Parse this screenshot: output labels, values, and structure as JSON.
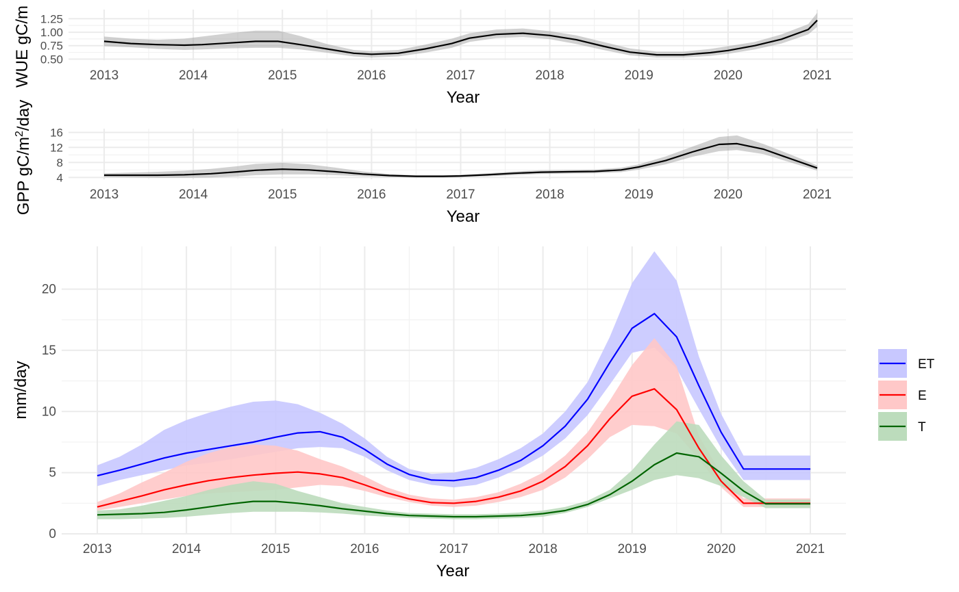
{
  "chart_data": [
    {
      "type": "line",
      "panel": "wue",
      "xlabel": "Year",
      "ylabel": "WUE gC/m",
      "xlim": [
        2012.6,
        2021.4
      ],
      "ylim": [
        0.48,
        1.42
      ],
      "xticks": [
        2013,
        2014,
        2015,
        2016,
        2017,
        2018,
        2019,
        2020,
        2021
      ],
      "xtick_labels": [
        "2013",
        "2014",
        "2015",
        "2016",
        "2017",
        "2018",
        "2019",
        "2020",
        "2021"
      ],
      "yticks": [
        0.5,
        0.75,
        1.0,
        1.25
      ],
      "ytick_labels": [
        "0.50",
        "0.75",
        "1.00",
        "1.25"
      ],
      "grid": true,
      "colors": {
        "line": "#000000",
        "band": "#999999"
      },
      "series": [
        {
          "x": [
            2013,
            2013.3,
            2013.6,
            2013.9,
            2014.1,
            2014.4,
            2014.7,
            2014.95,
            2015.2,
            2015.5,
            2015.8,
            2016.0,
            2016.3,
            2016.6,
            2016.9,
            2017.1,
            2017.4,
            2017.7,
            2018.0,
            2018.3,
            2018.6,
            2018.9,
            2019.2,
            2019.5,
            2019.8,
            2020.0,
            2020.3,
            2020.6,
            2020.9,
            2021.0
          ],
          "y": [
            0.83,
            0.79,
            0.77,
            0.76,
            0.77,
            0.8,
            0.83,
            0.83,
            0.77,
            0.69,
            0.61,
            0.59,
            0.61,
            0.69,
            0.79,
            0.89,
            0.96,
            0.98,
            0.94,
            0.86,
            0.74,
            0.63,
            0.58,
            0.58,
            0.62,
            0.66,
            0.75,
            0.87,
            1.05,
            1.22
          ],
          "lower": [
            0.74,
            0.72,
            0.69,
            0.67,
            0.68,
            0.7,
            0.71,
            0.71,
            0.68,
            0.62,
            0.55,
            0.53,
            0.55,
            0.62,
            0.71,
            0.82,
            0.89,
            0.91,
            0.87,
            0.78,
            0.67,
            0.57,
            0.53,
            0.53,
            0.56,
            0.6,
            0.68,
            0.79,
            0.96,
            1.1
          ],
          "upper": [
            0.92,
            0.88,
            0.86,
            0.88,
            0.92,
            0.98,
            1.03,
            1.03,
            0.93,
            0.78,
            0.67,
            0.65,
            0.67,
            0.77,
            0.88,
            0.98,
            1.05,
            1.07,
            1.02,
            0.94,
            0.82,
            0.7,
            0.64,
            0.64,
            0.69,
            0.74,
            0.82,
            0.96,
            1.15,
            1.36
          ]
        }
      ]
    },
    {
      "type": "line",
      "panel": "gpp",
      "xlabel": "Year",
      "ylabel_main": "GPP gC/m",
      "ylabel_sup": "2",
      "ylabel_tail": "/day",
      "xlim": [
        2012.6,
        2021.4
      ],
      "ylim": [
        3.5,
        17.0
      ],
      "xticks": [
        2013,
        2014,
        2015,
        2016,
        2017,
        2018,
        2019,
        2020,
        2021
      ],
      "xtick_labels": [
        "2013",
        "2014",
        "2015",
        "2016",
        "2017",
        "2018",
        "2019",
        "2020",
        "2021"
      ],
      "yticks": [
        4,
        8,
        12,
        16
      ],
      "ytick_labels": [
        "4",
        "8",
        "12",
        "16"
      ],
      "grid": true,
      "colors": {
        "line": "#000000",
        "band": "#999999"
      },
      "series": [
        {
          "x": [
            2013,
            2013.3,
            2013.6,
            2013.9,
            2014.2,
            2014.5,
            2014.7,
            2015.0,
            2015.3,
            2015.6,
            2015.9,
            2016.2,
            2016.5,
            2016.8,
            2017.0,
            2017.3,
            2017.6,
            2017.9,
            2018.2,
            2018.5,
            2018.8,
            2019.0,
            2019.3,
            2019.6,
            2019.9,
            2020.1,
            2020.4,
            2020.7,
            2021.0
          ],
          "y": [
            4.6,
            4.6,
            4.6,
            4.7,
            5.0,
            5.5,
            5.9,
            6.2,
            6.0,
            5.5,
            4.9,
            4.5,
            4.3,
            4.3,
            4.4,
            4.7,
            5.1,
            5.4,
            5.5,
            5.6,
            6.0,
            6.8,
            8.5,
            10.8,
            12.8,
            13.0,
            11.5,
            9.0,
            6.5
          ],
          "lower": [
            4.1,
            4.0,
            3.9,
            3.9,
            4.0,
            4.3,
            4.6,
            4.8,
            4.8,
            4.6,
            4.3,
            4.1,
            4.0,
            4.0,
            4.1,
            4.3,
            4.6,
            4.9,
            5.0,
            5.1,
            5.4,
            6.1,
            7.5,
            9.5,
            11.0,
            11.3,
            10.2,
            8.0,
            5.8
          ],
          "upper": [
            5.1,
            5.3,
            5.5,
            5.8,
            6.3,
            7.0,
            7.6,
            7.9,
            7.5,
            6.6,
            5.6,
            4.9,
            4.6,
            4.6,
            4.7,
            5.1,
            5.6,
            5.9,
            6.0,
            6.1,
            6.6,
            7.5,
            9.6,
            12.2,
            14.8,
            15.2,
            12.9,
            10.1,
            7.2
          ]
        }
      ]
    },
    {
      "type": "line",
      "panel": "et",
      "xlabel": "Year",
      "ylabel": "mm/day",
      "xlim": [
        2012.6,
        2021.4
      ],
      "ylim": [
        0,
        23.5
      ],
      "xticks": [
        2013,
        2014,
        2015,
        2016,
        2017,
        2018,
        2019,
        2020,
        2021
      ],
      "xtick_labels": [
        "2013",
        "2014",
        "2015",
        "2016",
        "2017",
        "2018",
        "2019",
        "2020",
        "2021"
      ],
      "yticks": [
        0,
        5,
        10,
        15,
        20
      ],
      "ytick_labels": [
        "0",
        "5",
        "10",
        "15",
        "20"
      ],
      "grid": true,
      "legend": "right",
      "x": [
        2013,
        2013.25,
        2013.5,
        2013.75,
        2014,
        2014.25,
        2014.5,
        2014.75,
        2015,
        2015.25,
        2015.5,
        2015.75,
        2016,
        2016.25,
        2016.5,
        2016.75,
        2017,
        2017.25,
        2017.5,
        2017.75,
        2018,
        2018.25,
        2018.5,
        2018.75,
        2019,
        2019.25,
        2019.5,
        2019.75,
        2020,
        2020.25,
        2020.5,
        2020.75,
        2021
      ],
      "series": [
        {
          "name": "ET",
          "color": "#0000ff",
          "fill": "#c8c8ff",
          "y": [
            4.75,
            5.2,
            5.7,
            6.2,
            6.6,
            6.9,
            7.2,
            7.5,
            7.9,
            8.25,
            8.35,
            7.9,
            6.9,
            5.7,
            4.85,
            4.4,
            4.35,
            4.6,
            5.2,
            6.0,
            7.2,
            8.8,
            11.0,
            14.0,
            16.8,
            18.0,
            16.1,
            12.1,
            8.3,
            5.3,
            5.3,
            5.3,
            5.3
          ],
          "lower": [
            3.9,
            4.4,
            4.8,
            5.2,
            5.6,
            5.8,
            6.1,
            6.4,
            6.7,
            7.0,
            7.1,
            7.0,
            6.3,
            5.2,
            4.4,
            4.0,
            3.8,
            4.0,
            4.6,
            5.4,
            6.4,
            7.8,
            9.7,
            12.2,
            14.8,
            15.2,
            13.5,
            10.2,
            7.0,
            4.4,
            4.4,
            4.4,
            4.4
          ],
          "upper": [
            5.6,
            6.3,
            7.3,
            8.5,
            9.3,
            9.9,
            10.4,
            10.8,
            10.9,
            10.6,
            9.9,
            9.0,
            7.8,
            6.3,
            5.3,
            4.9,
            5.0,
            5.4,
            6.1,
            7.0,
            8.2,
            10.0,
            12.4,
            16.1,
            20.5,
            23.1,
            20.7,
            14.5,
            9.8,
            6.4,
            6.4,
            6.4,
            6.4
          ]
        },
        {
          "name": "E",
          "color": "#ff0000",
          "fill": "#ffc8c8",
          "y": [
            2.2,
            2.65,
            3.1,
            3.6,
            4.0,
            4.35,
            4.6,
            4.8,
            4.95,
            5.05,
            4.9,
            4.6,
            4.0,
            3.35,
            2.85,
            2.55,
            2.5,
            2.65,
            3.0,
            3.5,
            4.3,
            5.5,
            7.2,
            9.4,
            11.25,
            11.85,
            10.15,
            7.0,
            4.3,
            2.5,
            2.5,
            2.5,
            2.5
          ],
          "lower": [
            1.9,
            2.2,
            2.5,
            2.8,
            3.1,
            3.3,
            3.4,
            3.5,
            3.6,
            3.8,
            4.0,
            3.9,
            3.5,
            3.0,
            2.6,
            2.3,
            2.2,
            2.3,
            2.6,
            3.0,
            3.6,
            4.6,
            6.1,
            7.9,
            8.9,
            8.8,
            8.2,
            6.1,
            3.8,
            2.2,
            2.2,
            2.2,
            2.2
          ],
          "upper": [
            2.6,
            3.3,
            4.2,
            5.0,
            5.9,
            6.6,
            7.1,
            7.3,
            7.2,
            6.8,
            6.1,
            5.5,
            4.7,
            3.8,
            3.2,
            2.9,
            2.8,
            3.0,
            3.4,
            4.1,
            5.0,
            6.4,
            8.3,
            10.9,
            13.8,
            16.0,
            13.7,
            8.0,
            4.9,
            2.9,
            2.9,
            2.9,
            2.9
          ]
        },
        {
          "name": "T",
          "color": "#006400",
          "fill": "#bcdcbc",
          "y": [
            1.55,
            1.6,
            1.65,
            1.75,
            1.95,
            2.2,
            2.45,
            2.65,
            2.65,
            2.5,
            2.3,
            2.05,
            1.85,
            1.65,
            1.5,
            1.45,
            1.4,
            1.4,
            1.45,
            1.5,
            1.65,
            1.9,
            2.4,
            3.2,
            4.3,
            5.65,
            6.6,
            6.3,
            4.95,
            3.5,
            2.45,
            2.45,
            2.45
          ],
          "lower": [
            1.2,
            1.2,
            1.25,
            1.3,
            1.4,
            1.55,
            1.7,
            1.8,
            1.8,
            1.8,
            1.75,
            1.65,
            1.5,
            1.4,
            1.3,
            1.25,
            1.2,
            1.2,
            1.25,
            1.3,
            1.4,
            1.7,
            2.2,
            2.9,
            3.6,
            4.4,
            4.8,
            4.55,
            3.9,
            3.0,
            2.1,
            2.1,
            2.1
          ],
          "upper": [
            1.9,
            2.0,
            2.3,
            2.7,
            3.1,
            3.6,
            4.0,
            4.3,
            4.1,
            3.5,
            3.0,
            2.5,
            2.2,
            1.9,
            1.7,
            1.65,
            1.6,
            1.6,
            1.65,
            1.75,
            1.9,
            2.2,
            2.7,
            3.6,
            5.2,
            7.3,
            9.2,
            8.9,
            6.4,
            4.3,
            2.8,
            2.8,
            2.8
          ]
        }
      ]
    }
  ]
}
